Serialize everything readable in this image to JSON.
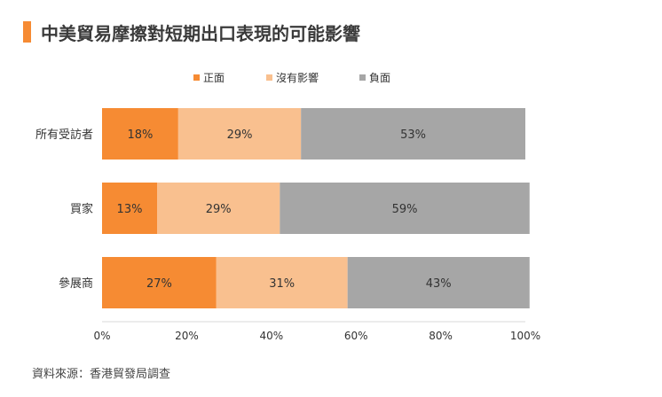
{
  "title": "中美貿易摩擦對短期出口表現的可能影響",
  "source": "資料來源：香港貿發局調查",
  "colors": {
    "accent": "#f68b33",
    "positive": "#f68b33",
    "neutral": "#f9c08f",
    "negative": "#a6a6a6"
  },
  "chart_data": {
    "type": "bar",
    "orientation": "horizontal",
    "stacked": true,
    "categories": [
      "所有受訪者",
      "買家",
      "參展商"
    ],
    "series": [
      {
        "name": "正面",
        "values": [
          18,
          13,
          27
        ],
        "labels": [
          "18%",
          "13%",
          "27%"
        ]
      },
      {
        "name": "沒有影響",
        "values": [
          29,
          29,
          31
        ],
        "labels": [
          "29%",
          "29%",
          "31%"
        ]
      },
      {
        "name": "負面",
        "values": [
          53,
          59,
          43
        ],
        "labels": [
          "53%",
          "59%",
          "43%"
        ]
      }
    ],
    "xticks": [
      "0%",
      "20%",
      "40%",
      "60%",
      "80%",
      "100%"
    ],
    "xlim": [
      0,
      100
    ],
    "legend_position": "top",
    "grid": false
  }
}
